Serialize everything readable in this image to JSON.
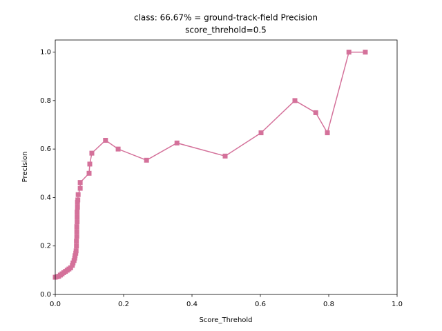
{
  "chart_data": {
    "type": "line",
    "title": "class: 66.67% = ground-track-field Precision",
    "subtitle": "score_threhold=0.5",
    "x_label": "Score_Threhold",
    "y_label": "Precision",
    "series": [
      {
        "name": "Precision",
        "color": "#d4719a",
        "x": [
          0.0,
          0.005,
          0.01,
          0.015,
          0.02,
          0.025,
          0.03,
          0.035,
          0.04,
          0.045,
          0.05,
          0.052,
          0.055,
          0.057,
          0.058,
          0.06,
          0.061,
          0.062,
          0.062,
          0.063,
          0.063,
          0.063,
          0.064,
          0.064,
          0.064,
          0.065,
          0.065,
          0.066,
          0.067,
          0.073,
          0.073,
          0.099,
          0.101,
          0.107,
          0.147,
          0.184,
          0.267,
          0.356,
          0.497,
          0.602,
          0.701,
          0.762,
          0.796,
          0.859,
          0.907
        ],
        "values": [
          0.071,
          0.073,
          0.075,
          0.08,
          0.085,
          0.09,
          0.095,
          0.1,
          0.105,
          0.11,
          0.12,
          0.13,
          0.14,
          0.15,
          0.16,
          0.17,
          0.18,
          0.2,
          0.22,
          0.24,
          0.26,
          0.28,
          0.3,
          0.32,
          0.34,
          0.36,
          0.38,
          0.39,
          0.412,
          0.438,
          0.462,
          0.5,
          0.538,
          0.583,
          0.636,
          0.6,
          0.554,
          0.625,
          0.571,
          0.667,
          0.8,
          0.75,
          0.667,
          1.0,
          1.0
        ]
      }
    ],
    "xlim": [
      0,
      1
    ],
    "ylim": [
      0,
      1.05
    ],
    "xticks": [
      {
        "value": 0,
        "label": "0.0"
      },
      {
        "value": 0.2,
        "label": "0.2"
      },
      {
        "value": 0.4,
        "label": "0.4"
      },
      {
        "value": 0.6,
        "label": "0.6"
      },
      {
        "value": 0.8,
        "label": "0.8"
      },
      {
        "value": 1,
        "label": "1.0"
      }
    ],
    "yticks": [
      {
        "value": 0,
        "label": "0.0"
      },
      {
        "value": 0.2,
        "label": "0.2"
      },
      {
        "value": 0.4,
        "label": "0.4"
      },
      {
        "value": 0.6,
        "label": "0.6"
      },
      {
        "value": 0.8,
        "label": "0.8"
      },
      {
        "value": 1,
        "label": "1.0"
      }
    ],
    "grid": false
  }
}
